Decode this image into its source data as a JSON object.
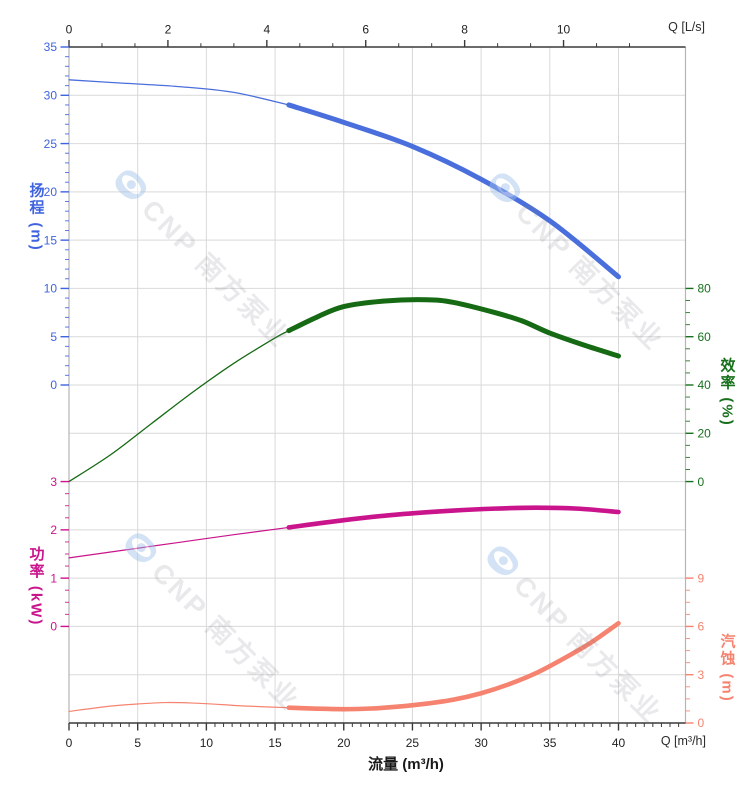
{
  "chart_data": {
    "type": "line",
    "title": "",
    "axes": {
      "top": {
        "title": "Q [L/s]",
        "majors": [
          0,
          2,
          4,
          6,
          8,
          10
        ],
        "minor_step": 0.6667,
        "minor_max": 11.4,
        "color": "#3a3a3a"
      },
      "bottom": {
        "title": "Q [m³/h]",
        "xlabel": "流量 (m³/h)",
        "majors": [
          0,
          5,
          10,
          15,
          20,
          25,
          30,
          35,
          40
        ],
        "minor_step": 0.625,
        "minor_max": 44.4,
        "color": "#3a3a3a"
      },
      "head": {
        "label": "扬程 (m)",
        "majors": [
          35,
          30,
          25,
          20,
          15,
          10,
          5,
          0
        ],
        "minor_step": 1,
        "range": [
          0,
          35
        ],
        "color": "#3f63de"
      },
      "eff": {
        "label": "效率 (%)",
        "majors": [
          80,
          60,
          40,
          20,
          0
        ],
        "minor_step": 5,
        "range": [
          0,
          80
        ],
        "color": "#17701c"
      },
      "pow": {
        "label": "功率 (kW)",
        "majors": [
          3,
          2,
          1,
          0
        ],
        "minor_step": 0.25,
        "range": [
          0,
          3
        ],
        "color": "#c9148c"
      },
      "npsh": {
        "label": "汽蚀 (m)",
        "majors": [
          9,
          6,
          3,
          0
        ],
        "minor_step": 0.75,
        "range": [
          0,
          9
        ],
        "color": "#f5836f"
      }
    },
    "series": [
      {
        "name": "head-thin",
        "axis": "head",
        "color": "#4a6fdc",
        "width": 1.3,
        "points": [
          [
            0,
            31.6
          ],
          [
            4,
            31.25
          ],
          [
            8,
            30.9
          ],
          [
            12,
            30.3
          ],
          [
            16,
            29.0
          ]
        ]
      },
      {
        "name": "head-thick",
        "axis": "head",
        "color": "#4a6fdc",
        "width": 5,
        "points": [
          [
            16,
            29.0
          ],
          [
            20,
            27.2
          ],
          [
            25,
            24.7
          ],
          [
            30,
            21.3
          ],
          [
            35,
            17.0
          ],
          [
            40,
            11.2
          ]
        ]
      },
      {
        "name": "eff-thin",
        "axis": "eff",
        "color": "#156a13",
        "width": 1.3,
        "points": [
          [
            0,
            0
          ],
          [
            3,
            11
          ],
          [
            6,
            24
          ],
          [
            9,
            37
          ],
          [
            12,
            49
          ],
          [
            15,
            59.5
          ],
          [
            16,
            62.5
          ]
        ]
      },
      {
        "name": "eff-thick",
        "axis": "eff",
        "color": "#156a13",
        "width": 5,
        "points": [
          [
            16,
            62.5
          ],
          [
            18,
            68
          ],
          [
            20,
            72.5
          ],
          [
            23,
            74.8
          ],
          [
            26,
            75.3
          ],
          [
            28,
            74.2
          ],
          [
            31,
            70
          ],
          [
            33,
            66.5
          ],
          [
            35,
            61.5
          ],
          [
            37.5,
            56.5
          ],
          [
            40,
            52
          ]
        ]
      },
      {
        "name": "power-thin",
        "axis": "pow",
        "color": "#c9148c",
        "width": 1.2,
        "points": [
          [
            0,
            1.42
          ],
          [
            4,
            1.58
          ],
          [
            8,
            1.74
          ],
          [
            12,
            1.9
          ],
          [
            16,
            2.05
          ]
        ]
      },
      {
        "name": "power-thick",
        "axis": "pow",
        "color": "#c9148c",
        "width": 4.6,
        "points": [
          [
            16,
            2.05
          ],
          [
            20,
            2.2
          ],
          [
            24,
            2.32
          ],
          [
            28,
            2.4
          ],
          [
            31,
            2.44
          ],
          [
            34,
            2.46
          ],
          [
            37,
            2.44
          ],
          [
            40,
            2.37
          ]
        ]
      },
      {
        "name": "npsh-thin",
        "axis": "npsh",
        "color": "#f5836f",
        "width": 1.2,
        "points": [
          [
            0,
            0.72
          ],
          [
            3,
            1.05
          ],
          [
            5,
            1.18
          ],
          [
            7,
            1.27
          ],
          [
            9,
            1.24
          ],
          [
            11,
            1.15
          ],
          [
            13,
            1.05
          ],
          [
            16,
            0.95
          ]
        ]
      },
      {
        "name": "npsh-thick",
        "axis": "npsh",
        "color": "#f5836f",
        "width": 4.6,
        "points": [
          [
            16,
            0.95
          ],
          [
            18,
            0.89
          ],
          [
            20,
            0.86
          ],
          [
            22,
            0.9
          ],
          [
            24,
            1.02
          ],
          [
            26,
            1.2
          ],
          [
            28,
            1.45
          ],
          [
            30,
            1.85
          ],
          [
            32,
            2.4
          ],
          [
            34,
            3.1
          ],
          [
            36,
            4.0
          ],
          [
            38,
            5.0
          ],
          [
            40,
            6.2
          ]
        ]
      }
    ],
    "grid": {
      "color": "#d9d9d9",
      "v_flow_step": 5,
      "h_rows": 14
    },
    "border_colors": {
      "top_bottom": "#3a3a3a",
      "left_right": "#b5b5b5"
    },
    "watermark": {
      "text": "CNP 南方泵业",
      "logo": "cnp-eye-logo"
    }
  }
}
